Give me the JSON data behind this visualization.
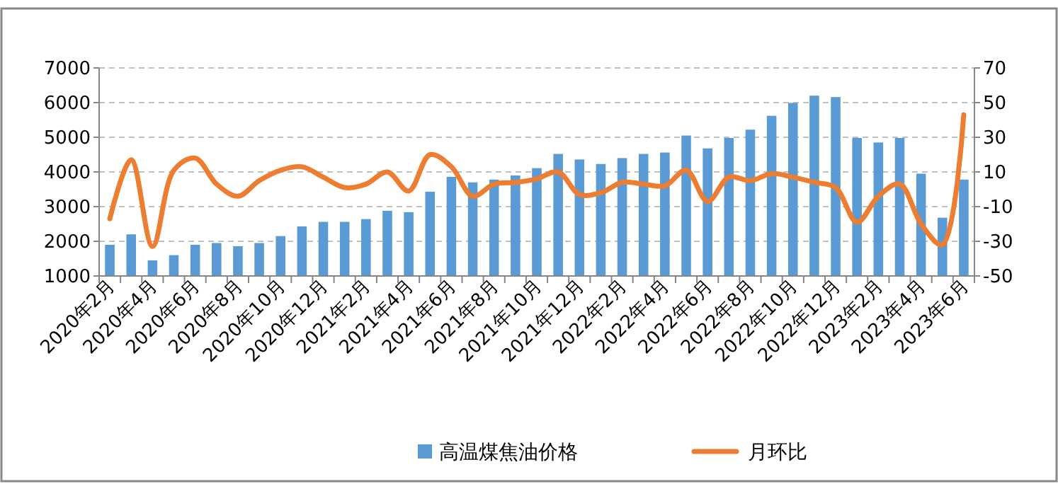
{
  "chart_data": {
    "type": "bar",
    "categories": [
      "2020年2月",
      null,
      "2020年4月",
      null,
      "2020年6月",
      null,
      "2020年8月",
      null,
      "2020年10月",
      null,
      "2020年12月",
      null,
      "2021年2月",
      null,
      "2021年4月",
      null,
      "2021年6月",
      null,
      "2021年8月",
      null,
      "2021年10月",
      null,
      "2021年12月",
      null,
      "2022年2月",
      null,
      "2022年4月",
      null,
      "2022年6月",
      null,
      "2022年8月",
      null,
      "2022年10月",
      null,
      "2022年12月",
      null,
      "2023年2月",
      null,
      "2023年4月",
      null,
      "2023年6月"
    ],
    "series": [
      {
        "name": "高温煤焦油价格",
        "color": "#5b9bd5",
        "values": [
          1900,
          2200,
          1450,
          1600,
          1900,
          1950,
          1860,
          1950,
          2150,
          2430,
          2560,
          2560,
          2640,
          2880,
          2840,
          3430,
          3860,
          3700,
          3780,
          3900,
          4110,
          4520,
          4360,
          4230,
          4400,
          4520,
          4560,
          5050,
          4680,
          4980,
          5220,
          5620,
          5990,
          6200,
          6160,
          4980,
          4850,
          4980,
          3950,
          2680,
          3780
        ]
      },
      {
        "name": "月环比",
        "type": "line",
        "axis": "y2",
        "color": "#ed7d31",
        "values": [
          -17,
          17,
          -33,
          11,
          18,
          3,
          -4,
          5,
          11,
          13,
          7,
          1,
          3,
          10,
          -1,
          20,
          13,
          -4,
          3,
          4,
          6,
          10,
          -3,
          -2,
          4,
          3,
          2,
          11,
          -7,
          7,
          5,
          9,
          7,
          4,
          1,
          -19,
          -4,
          3,
          -20,
          -32,
          43
        ]
      }
    ],
    "ylim": [
      1000,
      7000
    ],
    "yticks": [
      1000,
      2000,
      3000,
      4000,
      5000,
      6000,
      7000
    ],
    "y2lim": [
      -50,
      70
    ],
    "y2ticks": [
      -50,
      -30,
      -10,
      10,
      30,
      50,
      70
    ],
    "grid": "y",
    "legend": "bottom",
    "marker": "none",
    "line_style": "solid"
  }
}
